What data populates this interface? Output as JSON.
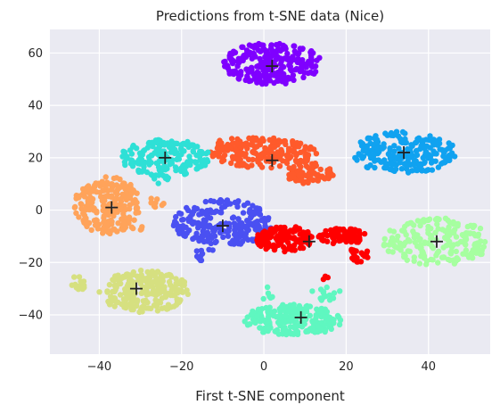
{
  "chart_data": {
    "type": "scatter",
    "title": "Predictions from t-SNE data (Nice)",
    "xlabel": "First t-SNE component",
    "ylabel": "",
    "xlim": [
      -52,
      55
    ],
    "ylim": [
      -55,
      69
    ],
    "xticks": [
      -40,
      -20,
      0,
      20,
      40
    ],
    "yticks": [
      -40,
      -20,
      0,
      20,
      40,
      60
    ],
    "xtick_labels": [
      "−40",
      "−20",
      "0",
      "20",
      "40"
    ],
    "ytick_labels": [
      "−40",
      "−20",
      "0",
      "20",
      "40",
      "60"
    ],
    "grid": true,
    "background": "#eaeaf2",
    "clusters": [
      {
        "color": "#7f00ff",
        "centroid": [
          2,
          55
        ],
        "blobs": [
          {
            "cx": 2,
            "cy": 56,
            "rx": 12,
            "ry": 8,
            "n": 260
          }
        ]
      },
      {
        "color": "#ff5a2b",
        "centroid": [
          2,
          19
        ],
        "blobs": [
          {
            "cx": 0,
            "cy": 22,
            "rx": 13,
            "ry": 6,
            "n": 180
          },
          {
            "cx": 11,
            "cy": 14,
            "rx": 6,
            "ry": 4,
            "n": 70
          },
          {
            "cx": -8,
            "cy": 25,
            "rx": 4,
            "ry": 2.5,
            "n": 20
          }
        ]
      },
      {
        "color": "#10a2f0",
        "centroid": [
          34,
          22
        ],
        "blobs": [
          {
            "cx": 34,
            "cy": 22,
            "rx": 13,
            "ry": 8,
            "n": 220
          }
        ]
      },
      {
        "color": "#2ee0d6",
        "centroid": [
          -24,
          20
        ],
        "blobs": [
          {
            "cx": -24,
            "cy": 20,
            "rx": 11,
            "ry": 7,
            "n": 180
          },
          {
            "cx": -26,
            "cy": 12,
            "rx": 3,
            "ry": 2,
            "n": 8
          }
        ]
      },
      {
        "color": "#ffa35a",
        "centroid": [
          -37,
          1
        ],
        "blobs": [
          {
            "cx": -38,
            "cy": 2,
            "rx": 8,
            "ry": 11,
            "n": 210
          },
          {
            "cx": -26,
            "cy": 3,
            "rx": 2,
            "ry": 2,
            "n": 8
          },
          {
            "cx": -32,
            "cy": -7,
            "rx": 3,
            "ry": 1.5,
            "n": 8
          }
        ]
      },
      {
        "color": "#4a50f2",
        "centroid": [
          -10,
          -6
        ],
        "blobs": [
          {
            "cx": -10,
            "cy": -5,
            "rx": 12,
            "ry": 9,
            "n": 230
          },
          {
            "cx": -14,
            "cy": -17,
            "rx": 3,
            "ry": 2.5,
            "n": 12
          }
        ]
      },
      {
        "color": "#ff0000",
        "centroid": [
          11,
          -12
        ],
        "blobs": [
          {
            "cx": 5,
            "cy": -11,
            "rx": 7,
            "ry": 5,
            "n": 120
          },
          {
            "cx": 19,
            "cy": -10,
            "rx": 6,
            "ry": 3,
            "n": 80
          },
          {
            "cx": 23,
            "cy": -17,
            "rx": 2.5,
            "ry": 3,
            "n": 20
          },
          {
            "cx": 15,
            "cy": -26,
            "rx": 1,
            "ry": 1,
            "n": 3
          }
        ]
      },
      {
        "color": "#a6ffa0",
        "centroid": [
          42,
          -12
        ],
        "blobs": [
          {
            "cx": 42,
            "cy": -12,
            "rx": 13,
            "ry": 9,
            "n": 200
          }
        ]
      },
      {
        "color": "#d6e080",
        "centroid": [
          -31,
          -30
        ],
        "blobs": [
          {
            "cx": -29,
            "cy": -31,
            "rx": 11,
            "ry": 8,
            "n": 240
          },
          {
            "cx": -45,
            "cy": -28,
            "rx": 2,
            "ry": 3,
            "n": 15
          }
        ]
      },
      {
        "color": "#5ff7c0",
        "centroid": [
          9,
          -41
        ],
        "blobs": [
          {
            "cx": 7,
            "cy": -42,
            "rx": 12,
            "ry": 6,
            "n": 220
          },
          {
            "cx": 15,
            "cy": -32,
            "rx": 4,
            "ry": 3,
            "n": 15
          },
          {
            "cx": 1,
            "cy": -32,
            "rx": 1.5,
            "ry": 3,
            "n": 6
          }
        ]
      }
    ]
  }
}
